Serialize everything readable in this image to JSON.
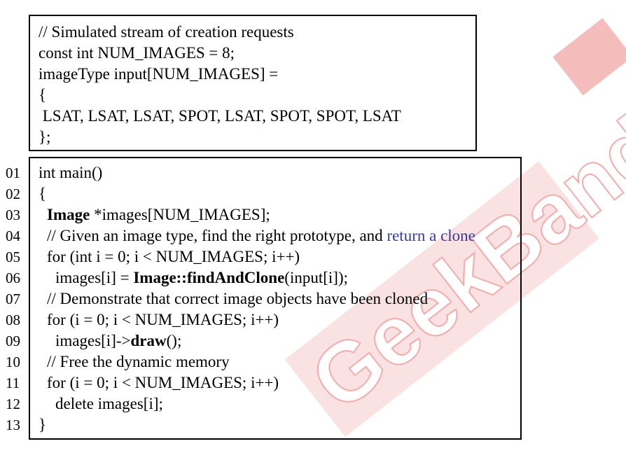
{
  "watermark": {
    "text": "GeekBand",
    "color": "#e86a6a"
  },
  "header_box": {
    "lines": [
      "// Simulated stream of creation requests",
      "const int NUM_IMAGES = 8;",
      "imageType input[NUM_IMAGES] =",
      "{",
      " LSAT, LSAT, LSAT, SPOT, LSAT, SPOT, SPOT, LSAT",
      "};"
    ]
  },
  "main_box": {
    "line_numbers": [
      "01",
      "02",
      "03",
      "04",
      "05",
      "06",
      "07",
      "08",
      "09",
      "10",
      "11",
      "12",
      "13"
    ],
    "l01": "int main()",
    "l02": "{",
    "l03_bold": "Image",
    "l03_rest": " *images[NUM_IMAGES];",
    "l04_text": "// Given an image type, find the right prototype, and ",
    "l04_link": "return a clone",
    "l05": "for (int i = 0; i < NUM_IMAGES; i++)",
    "l06_pre": "images[i] = ",
    "l06_bold": "Image::findAndClone",
    "l06_post": "(input[i]);",
    "l07": "// Demonstrate that correct image objects have been cloned",
    "l08": "for (i = 0; i < NUM_IMAGES; i++)",
    "l09_pre": "images[i]->",
    "l09_bold": "draw",
    "l09_post": "();",
    "l10": "// Free the dynamic memory",
    "l11": "for (i = 0; i < NUM_IMAGES; i++)",
    "l12": "delete images[i];",
    "l13": "}"
  }
}
